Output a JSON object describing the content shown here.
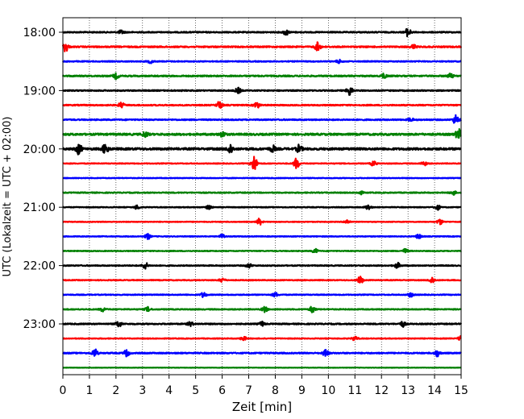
{
  "chart_data": {
    "type": "line",
    "xlabel": "Zeit  [min]",
    "ylabel": "UTC (Lokalzeit = UTC + 02:00)",
    "xlim": [
      0,
      15
    ],
    "x_ticks": [
      "0",
      "1",
      "2",
      "3",
      "4",
      "5",
      "6",
      "7",
      "8",
      "9",
      "10",
      "11",
      "12",
      "13",
      "14",
      "15"
    ],
    "y_ticks": [
      "18:00",
      "19:00",
      "20:00",
      "21:00",
      "22:00",
      "23:00"
    ],
    "grid": "vertical dotted",
    "trace_colors": [
      "#000000",
      "#ff0000",
      "#0000ff",
      "#008000"
    ],
    "series": [
      {
        "start": "18:00",
        "amp": 0.3,
        "events": [
          [
            2.2,
            0.35
          ],
          [
            8.4,
            0.5
          ],
          [
            13.0,
            0.8
          ]
        ]
      },
      {
        "start": "18:15",
        "amp": 0.35,
        "events": [
          [
            0.1,
            0.9
          ],
          [
            9.6,
            0.8
          ],
          [
            13.2,
            0.4
          ]
        ]
      },
      {
        "start": "18:30",
        "amp": 0.25,
        "events": [
          [
            3.3,
            0.3
          ],
          [
            10.4,
            0.3
          ]
        ]
      },
      {
        "start": "18:45",
        "amp": 0.35,
        "events": [
          [
            2.0,
            0.5
          ],
          [
            12.1,
            0.4
          ],
          [
            14.6,
            0.4
          ]
        ]
      },
      {
        "start": "19:00",
        "amp": 0.3,
        "events": [
          [
            6.6,
            0.5
          ],
          [
            10.8,
            0.9
          ]
        ]
      },
      {
        "start": "19:15",
        "amp": 0.3,
        "events": [
          [
            2.2,
            0.5
          ],
          [
            5.9,
            0.7
          ],
          [
            7.3,
            0.6
          ]
        ]
      },
      {
        "start": "19:30",
        "amp": 0.3,
        "events": [
          [
            13.1,
            0.3
          ],
          [
            14.8,
            0.9
          ]
        ]
      },
      {
        "start": "19:45",
        "amp": 0.5,
        "events": [
          [
            3.1,
            0.5
          ],
          [
            6.0,
            0.5
          ],
          [
            14.9,
            1.0
          ]
        ]
      },
      {
        "start": "20:00",
        "amp": 0.55,
        "events": [
          [
            0.6,
            1.0
          ],
          [
            1.6,
            1.0
          ],
          [
            6.3,
            0.9
          ],
          [
            7.9,
            0.6
          ],
          [
            8.9,
            0.7
          ]
        ]
      },
      {
        "start": "20:15",
        "amp": 0.2,
        "events": [
          [
            7.2,
            1.6
          ],
          [
            8.8,
            1.0
          ],
          [
            11.7,
            0.5
          ],
          [
            13.6,
            0.4
          ]
        ]
      },
      {
        "start": "20:30",
        "amp": 0.18,
        "events": []
      },
      {
        "start": "20:45",
        "amp": 0.25,
        "events": [
          [
            11.2,
            0.3
          ],
          [
            14.7,
            0.4
          ]
        ]
      },
      {
        "start": "21:00",
        "amp": 0.2,
        "events": [
          [
            2.8,
            0.4
          ],
          [
            5.5,
            0.4
          ],
          [
            11.5,
            0.5
          ],
          [
            14.1,
            0.5
          ]
        ]
      },
      {
        "start": "21:15",
        "amp": 0.18,
        "events": [
          [
            7.4,
            0.6
          ],
          [
            10.7,
            0.4
          ],
          [
            14.2,
            0.5
          ]
        ]
      },
      {
        "start": "21:30",
        "amp": 0.2,
        "events": [
          [
            3.2,
            0.5
          ],
          [
            6.0,
            0.4
          ],
          [
            13.4,
            0.4
          ]
        ]
      },
      {
        "start": "21:45",
        "amp": 0.2,
        "events": [
          [
            9.5,
            0.4
          ],
          [
            12.9,
            0.4
          ]
        ]
      },
      {
        "start": "22:00",
        "amp": 0.25,
        "events": [
          [
            3.1,
            0.6
          ],
          [
            7.0,
            0.4
          ],
          [
            12.6,
            0.5
          ]
        ]
      },
      {
        "start": "22:15",
        "amp": 0.22,
        "events": [
          [
            6.0,
            0.4
          ],
          [
            11.2,
            0.7
          ],
          [
            13.9,
            0.6
          ]
        ]
      },
      {
        "start": "22:30",
        "amp": 0.22,
        "events": [
          [
            5.3,
            0.5
          ],
          [
            8.0,
            0.4
          ],
          [
            13.1,
            0.4
          ]
        ]
      },
      {
        "start": "22:45",
        "amp": 0.25,
        "events": [
          [
            1.5,
            0.4
          ],
          [
            3.2,
            0.4
          ],
          [
            7.6,
            0.5
          ],
          [
            9.4,
            0.6
          ]
        ]
      },
      {
        "start": "23:00",
        "amp": 0.3,
        "events": [
          [
            2.1,
            0.6
          ],
          [
            4.8,
            0.4
          ],
          [
            7.5,
            0.4
          ],
          [
            12.8,
            0.5
          ]
        ]
      },
      {
        "start": "23:15",
        "amp": 0.2,
        "events": [
          [
            6.8,
            0.4
          ],
          [
            11.0,
            0.4
          ],
          [
            15.0,
            0.6
          ]
        ]
      },
      {
        "start": "23:30",
        "amp": 0.3,
        "events": [
          [
            1.2,
            0.8
          ],
          [
            2.4,
            0.6
          ],
          [
            9.9,
            0.7
          ],
          [
            14.1,
            0.6
          ]
        ]
      },
      {
        "start": "23:45",
        "amp": 0.1,
        "events": []
      }
    ]
  }
}
